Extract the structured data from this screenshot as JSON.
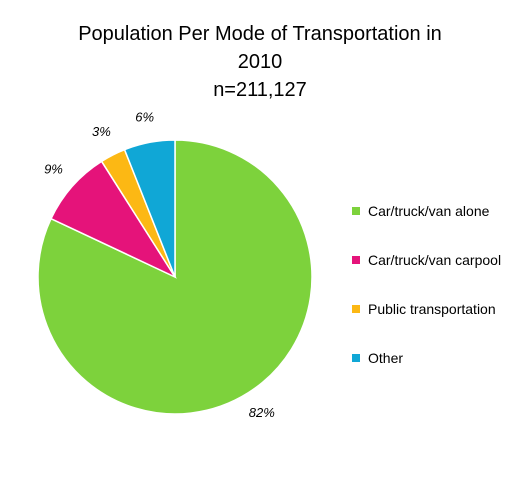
{
  "chart_data": {
    "type": "pie",
    "title": "Population Per Mode of Transportation in 2010",
    "title_lines": [
      "Population Per Mode of Transportation in",
      "2010"
    ],
    "subtitle": "n=211,127",
    "legend_position": "right",
    "categories": [
      "Car/truck/van alone",
      "Car/truck/van carpool",
      "Public transportation",
      "Other"
    ],
    "values": [
      82,
      9,
      3,
      6
    ],
    "labels": [
      "82%",
      "9%",
      "3%",
      "6%"
    ],
    "colors": [
      "#7DD23C",
      "#E5137A",
      "#FCB814",
      "#10A7D6"
    ]
  }
}
